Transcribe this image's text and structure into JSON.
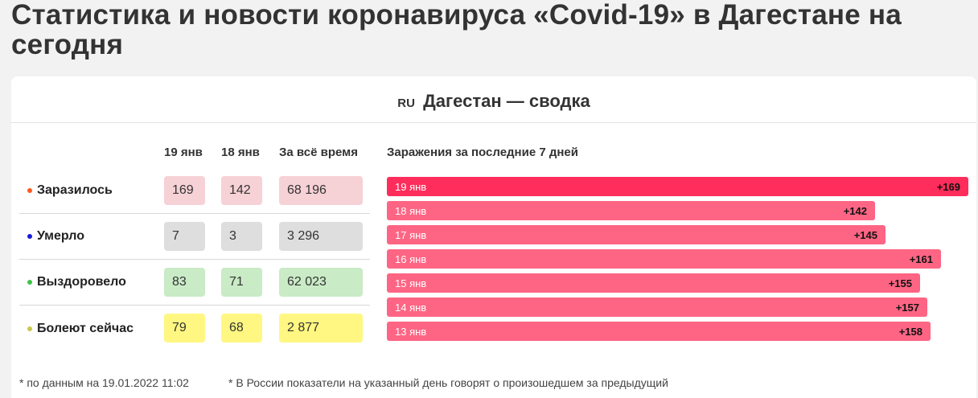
{
  "title": "Статистика и новости коронавируса «Covid-19» в Дагестане на сегодня",
  "summary": {
    "flag": "RU",
    "heading": "Дагестан — сводка",
    "columns": [
      "19 янв",
      "18 янв",
      "За всё время"
    ],
    "rows": [
      {
        "label": "Заразилось",
        "dot": "#ff5a1f",
        "cell_bg": "#f6d1d6",
        "values": [
          "169",
          "142",
          "68 196"
        ]
      },
      {
        "label": "Умерло",
        "dot": "#1a1ad6",
        "cell_bg": "#dedede",
        "values": [
          "7",
          "3",
          "3 296"
        ]
      },
      {
        "label": "Выздоровело",
        "dot": "#3fc24a",
        "cell_bg": "#c9ebc6",
        "values": [
          "83",
          "71",
          "62 023"
        ]
      },
      {
        "label": "Болеют сейчас",
        "dot": "#c8c84a",
        "cell_bg": "#fff781",
        "values": [
          "79",
          "68",
          "2 877"
        ]
      }
    ]
  },
  "chart_data": {
    "type": "bar",
    "title": "Заражения за последние 7 дней",
    "categories": [
      "19 янв",
      "18 янв",
      "17 янв",
      "16 янв",
      "15 янв",
      "14 янв",
      "13 янв"
    ],
    "values": [
      169,
      142,
      145,
      161,
      155,
      157,
      158
    ],
    "value_labels": [
      "+169",
      "+142",
      "+145",
      "+161",
      "+155",
      "+157",
      "+158"
    ],
    "colors": {
      "today": "#ff2d5b",
      "other": "#fe6584"
    }
  },
  "footnotes": {
    "date_note": "* по данным на 19.01.2022 11:02",
    "russia_note": "* В России показатели на указанный день говорят о произошедшем за предыдущий"
  }
}
